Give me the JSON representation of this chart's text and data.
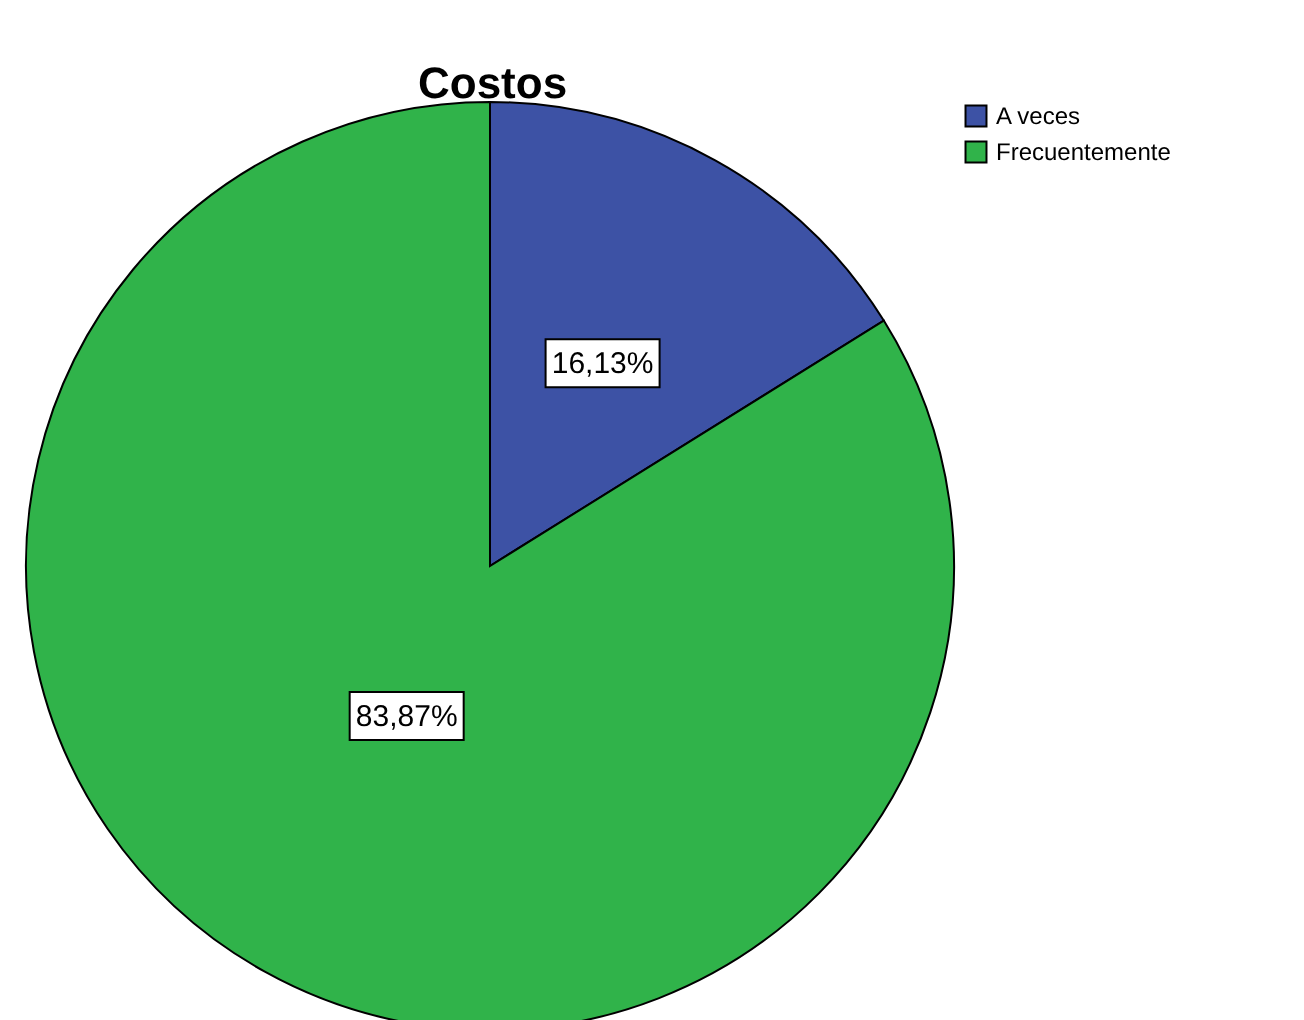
{
  "chart_data": {
    "type": "pie",
    "title": "Costos",
    "categories": [
      "A veces",
      "Frecuentemente"
    ],
    "values": [
      16.13,
      83.87
    ],
    "value_labels": [
      "16,13%",
      "83,87%"
    ],
    "colors": [
      "#3d52a5",
      "#30b34a"
    ],
    "legend": "top right"
  }
}
